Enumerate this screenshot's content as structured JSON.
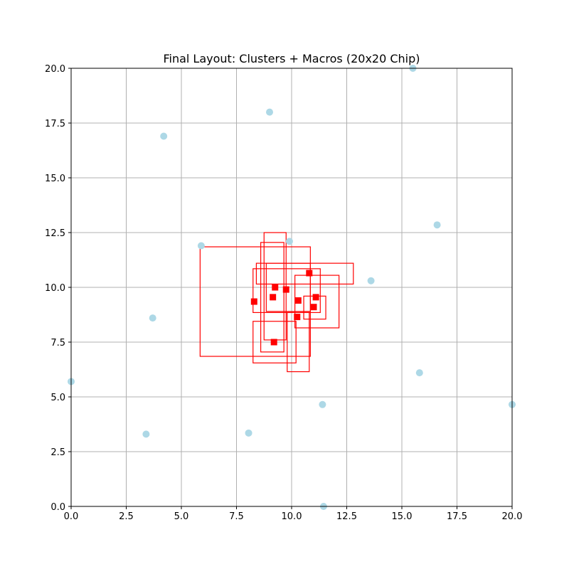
{
  "chart_data": {
    "type": "scatter",
    "title": "Final Layout: Clusters + Macros (20x20 Chip)",
    "xlabel": "",
    "ylabel": "",
    "xlim": [
      0,
      20
    ],
    "ylim": [
      0,
      20
    ],
    "grid": true,
    "xticks": [
      "0.0",
      "2.5",
      "5.0",
      "7.5",
      "10.0",
      "12.5",
      "15.0",
      "17.5",
      "20.0"
    ],
    "yticks": [
      "0.0",
      "2.5",
      "5.0",
      "7.5",
      "10.0",
      "12.5",
      "15.0",
      "17.5",
      "20.0"
    ],
    "colors": {
      "clusters": "#add8e6",
      "macros": "#ff0000"
    },
    "series": [
      {
        "marker": "circle",
        "points": [
          [
            15.5,
            20.0
          ],
          [
            9.0,
            18.0
          ],
          [
            4.2,
            16.9
          ],
          [
            16.6,
            12.85
          ],
          [
            5.9,
            11.9
          ],
          [
            9.9,
            12.1
          ],
          [
            13.6,
            10.3
          ],
          [
            3.7,
            8.6
          ],
          [
            15.8,
            6.1
          ],
          [
            0.0,
            5.7
          ],
          [
            11.4,
            4.65
          ],
          [
            20.0,
            4.65
          ],
          [
            3.4,
            3.3
          ],
          [
            8.05,
            3.35
          ],
          [
            11.45,
            0.0
          ]
        ]
      },
      {
        "marker": "square",
        "points": [
          [
            9.25,
            10.0
          ],
          [
            9.75,
            9.9
          ],
          [
            10.8,
            10.65
          ],
          [
            9.15,
            9.55
          ],
          [
            8.3,
            9.35
          ],
          [
            10.3,
            9.4
          ],
          [
            11.1,
            9.55
          ],
          [
            11.0,
            9.1
          ],
          [
            10.25,
            8.65
          ],
          [
            9.2,
            7.5
          ]
        ],
        "rects": [
          [
            8.75,
            7.6,
            9.75,
            12.5
          ],
          [
            8.6,
            7.05,
            9.65,
            12.05
          ],
          [
            5.85,
            6.85,
            10.85,
            11.85
          ],
          [
            8.4,
            10.15,
            12.8,
            11.1
          ],
          [
            8.85,
            8.9,
            10.85,
            11.1
          ],
          [
            8.25,
            8.85,
            11.3,
            10.85
          ],
          [
            10.15,
            8.15,
            12.15,
            10.55
          ],
          [
            10.55,
            8.55,
            11.55,
            9.6
          ],
          [
            9.8,
            6.15,
            10.8,
            8.85
          ],
          [
            8.25,
            6.55,
            10.2,
            8.45
          ]
        ]
      }
    ]
  }
}
